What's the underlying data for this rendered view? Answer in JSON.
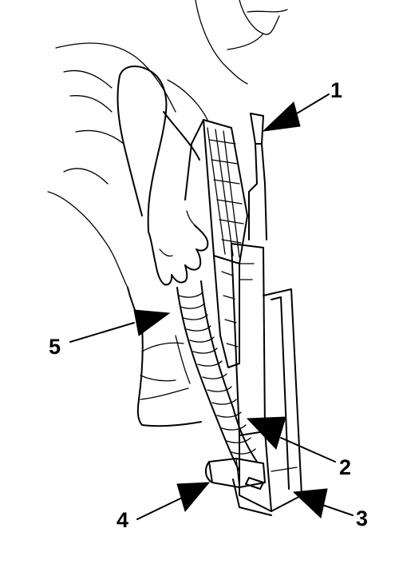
{
  "figure": {
    "callouts": [
      {
        "id": "1",
        "label": "1"
      },
      {
        "id": "2",
        "label": "2"
      },
      {
        "id": "3",
        "label": "3"
      },
      {
        "id": "4",
        "label": "4"
      },
      {
        "id": "5",
        "label": "5"
      }
    ]
  },
  "colors": {
    "ink": "#000000",
    "paper": "#ffffff"
  }
}
